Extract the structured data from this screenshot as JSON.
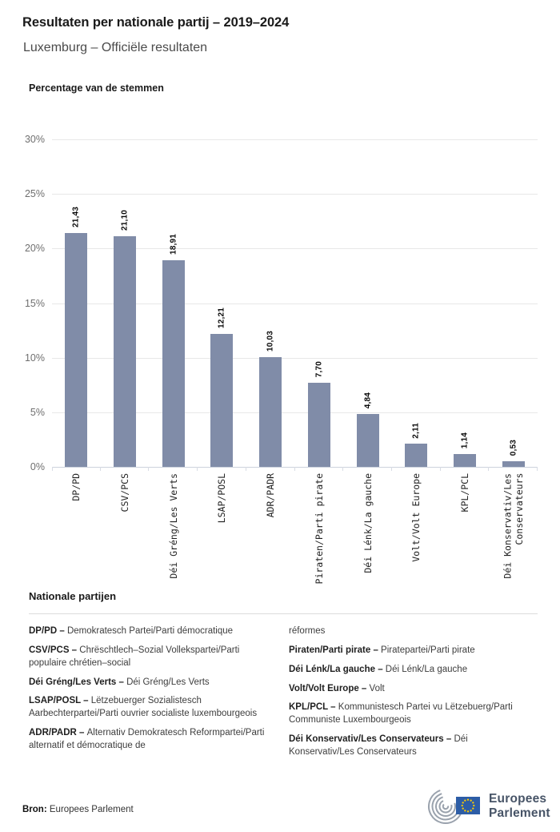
{
  "header": {
    "title": "Resultaten per nationale partij – 2019–2024",
    "subtitle": "Luxemburg – Officiële resultaten"
  },
  "chart_data": {
    "type": "bar",
    "title": "Percentage van de stemmen",
    "categories": [
      "DP/PD",
      "CSV/PCS",
      "Déi Gréng/Les Verts",
      "LSAP/POSL",
      "ADR/PADR",
      "Piraten/Parti pirate",
      "Déi Lénk/La gauche",
      "Volt/Volt Europe",
      "KPL/PCL",
      "Déi Konservativ/Les Conservateurs"
    ],
    "categories_wrapped": [
      "DP/PD",
      "CSV/PCS",
      "Déi Gréng/Les Verts",
      "LSAP/POSL",
      "ADR/PADR",
      "Piraten/Parti pirate",
      "Déi Lénk/La gauche",
      "Volt/Volt Europe",
      "KPL/PCL",
      "Déi Konservativ/Les\nConservateurs"
    ],
    "values": [
      21.43,
      21.1,
      18.91,
      12.21,
      10.03,
      7.7,
      4.84,
      2.11,
      1.14,
      0.53
    ],
    "value_labels": [
      "21,43",
      "21,10",
      "18,91",
      "12,21",
      "10,03",
      "7,70",
      "4,84",
      "2,11",
      "1,14",
      "0,53"
    ],
    "xlabel": "",
    "ylabel": "",
    "ylim": [
      0,
      30
    ],
    "ytick_labels": [
      "30%",
      "25%",
      "20%",
      "15%",
      "10%",
      "5%",
      "0%"
    ],
    "grid": true,
    "legend": false
  },
  "parties": {
    "heading": "Nationale partijen",
    "columns": {
      "left": [
        {
          "term": "DP/PD –",
          "desc": "Demokratesch Partei/Parti démocratique"
        },
        {
          "term": "CSV/PCS –",
          "desc": "Chrëschtlech–Sozial Vollekspartei/Parti populaire chrétien–social"
        },
        {
          "term": "Déi Gréng/Les Verts –",
          "desc": "Déi Gréng/Les Verts"
        },
        {
          "term": "LSAP/POSL –",
          "desc": "Lëtzebuerger Sozialistesch Aarbechterpartei/Parti ouvrier socialiste luxembourgeois"
        },
        {
          "term": "ADR/PADR –",
          "desc": "Alternativ Demokratesch Reformpartei/Parti alternatif et démocratique de"
        }
      ],
      "right": [
        {
          "term": "",
          "desc": "réformes"
        },
        {
          "term": "Piraten/Parti pirate –",
          "desc": "Piratepartei/Parti pirate"
        },
        {
          "term": "Déi Lénk/La gauche –",
          "desc": "Déi Lénk/La gauche"
        },
        {
          "term": "Volt/Volt Europe –",
          "desc": "Volt"
        },
        {
          "term": "KPL/PCL –",
          "desc": "Kommunistesch Partei vu Lëtzebuerg/Parti Communiste Luxembourgeois"
        },
        {
          "term": "Déi Konservativ/Les Conservateurs –",
          "desc": "Déi Konservativ/Les Conservateurs"
        }
      ]
    }
  },
  "footer": {
    "source_label": "Bron:",
    "source_text": "Europees Parlement",
    "logo": {
      "line1": "Europees",
      "line2": "Parlement"
    }
  },
  "colors": {
    "bar": "#808CA8",
    "grid": "#e8e8e8",
    "axis": "#ccd2dd",
    "tick": "#d8dce4",
    "flag_blue": "#2d5da6",
    "star_yellow": "#ffcc00",
    "logo_gray": "#9aa2ad",
    "logo_text": "#475467"
  }
}
